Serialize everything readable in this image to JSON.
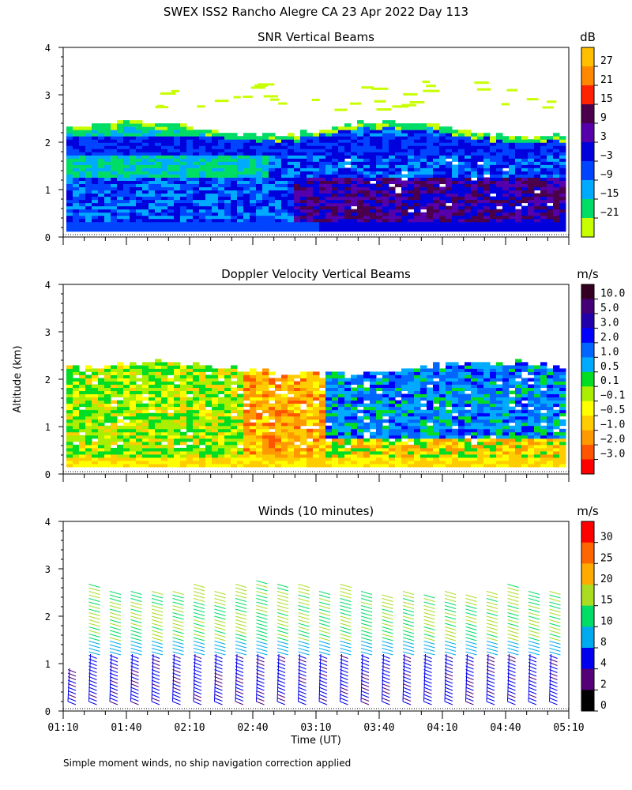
{
  "figure": {
    "title": "SWEX ISS2 Rancho Alegre CA  23 Apr 2022 Day 113",
    "ylabel": "Altitude (km)",
    "xlabel": "Time (UT)",
    "footnote": "Simple moment winds, no ship navigation correction applied"
  },
  "chart_data": [
    {
      "type": "heatmap",
      "title": "SNR Vertical Beams",
      "ylim": [
        0,
        4
      ],
      "yticks": [
        "0",
        "1",
        "2",
        "3",
        "4"
      ],
      "colorbar": {
        "unit": "dB",
        "labels": [
          "27",
          "21",
          "15",
          "9",
          "3",
          "−3",
          "−9",
          "−15",
          "−21"
        ],
        "colors": [
          "#ffbe00",
          "#ff8800",
          "#ff2200",
          "#4a004a",
          "#5500aa",
          "#0000dd",
          "#0044ff",
          "#00aaff",
          "#00dd66",
          "#c8ff00"
        ]
      },
      "data_extent_km": [
        0.12,
        2.4
      ],
      "summary": "Strong returns (-9 to 9 dB) below ~2.3 km across 01:10-05:10; weaker (-21 to -15 dB) echoes near 3 km"
    },
    {
      "type": "heatmap",
      "title": "Doppler Velocity Vertical Beams",
      "ylim": [
        0,
        4
      ],
      "yticks": [
        "0",
        "1",
        "2",
        "3",
        "4"
      ],
      "colorbar": {
        "unit": "m/s",
        "labels": [
          "10.0",
          "5.0",
          "3.0",
          "2.0",
          "1.0",
          "0.5",
          "0.1",
          "−0.1",
          "−0.5",
          "−1.0",
          "−2.0",
          "−3.0"
        ],
        "colors": [
          "#330022",
          "#440077",
          "#2200aa",
          "#0000ff",
          "#0066ff",
          "#00aaff",
          "#00dd22",
          "#aaee00",
          "#ffff00",
          "#ffcc00",
          "#ff9900",
          "#ff5500",
          "#ff0000"
        ]
      },
      "data_extent_km": [
        0.15,
        2.3
      ],
      "summary": "Mostly -0.5 to 0.5 m/s before 02:40; -1 to -2 m/s (orange) around 02:40-03:20; 0.5 to 1 m/s (blue) after 03:30"
    },
    {
      "type": "barbs",
      "title": "Winds (10 minutes)",
      "ylim": [
        0,
        4
      ],
      "yticks": [
        "0",
        "1",
        "2",
        "3",
        "4"
      ],
      "colorbar": {
        "unit": "m/s",
        "labels": [
          "30",
          "25",
          "20",
          "15",
          "10",
          "8",
          "4",
          "2",
          "0"
        ],
        "colors": [
          "#ff0000",
          "#ff6600",
          "#ffaa00",
          "#aadd22",
          "#00dd66",
          "#00aaee",
          "#0000ee",
          "#550077",
          "#000000"
        ]
      },
      "profile_top_km": [
        0.9,
        2.7,
        2.6,
        2.6,
        2.6,
        2.6,
        2.7,
        2.6,
        2.7,
        2.8,
        2.7,
        2.7,
        2.6,
        2.7,
        2.6,
        2.5,
        2.6,
        2.5,
        2.6,
        2.5,
        2.6,
        2.7,
        2.6,
        2.6
      ],
      "summary": "Light (2-8 m/s) winds below ~1.2 km, 10-15 m/s between 1.5 and 2.7 km"
    }
  ],
  "time_axis": {
    "labels": [
      "01:10",
      "01:40",
      "02:10",
      "02:40",
      "03:10",
      "03:40",
      "04:10",
      "04:40",
      "05:10"
    ],
    "range_minutes": [
      70,
      310
    ]
  }
}
